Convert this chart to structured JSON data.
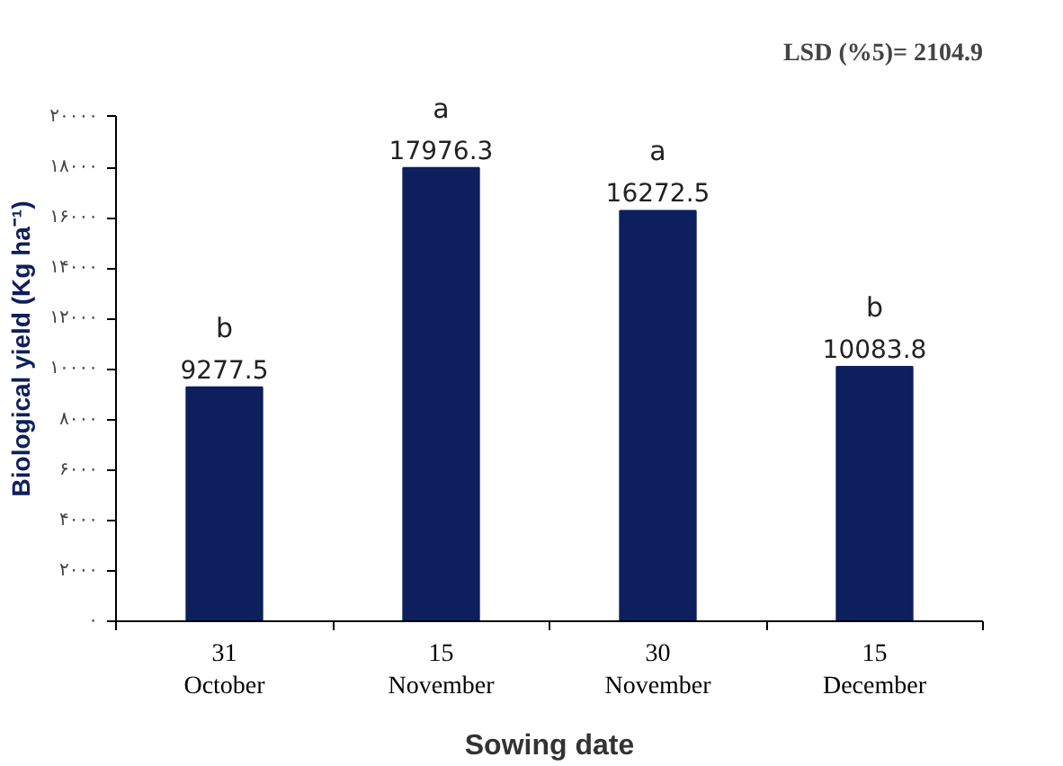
{
  "chart_data": {
    "type": "bar",
    "xlabel": "Sowing date",
    "ylabel": "Biological yield (Kg ha⁻¹)",
    "categories": [
      "31\nOctober",
      "15\nNovember",
      "30\nNovember",
      "15\nDecember"
    ],
    "values": [
      9277.5,
      17976.3,
      16272.5,
      10083.8
    ],
    "color": "#0d1f5c",
    "data_labels": true,
    "ylim": [
      0,
      20000
    ],
    "yticks": [
      {
        "value": 0,
        "label": "۰"
      },
      {
        "value": 2000,
        "label": "۲۰۰۰"
      },
      {
        "value": 4000,
        "label": "۴۰۰۰"
      },
      {
        "value": 6000,
        "label": "۶۰۰۰"
      },
      {
        "value": 8000,
        "label": "۸۰۰۰"
      },
      {
        "value": 10000,
        "label": "۱۰۰۰۰"
      },
      {
        "value": 12000,
        "label": "۱۲۰۰۰"
      },
      {
        "value": 14000,
        "label": "۱۴۰۰۰"
      },
      {
        "value": 16000,
        "label": "۱۶۰۰۰"
      },
      {
        "value": 18000,
        "label": "۱۸۰۰۰"
      },
      {
        "value": 20000,
        "label": "۲۰۰۰۰"
      }
    ],
    "grid": false,
    "annotations": [
      {
        "text": "b",
        "x": "31\nOctober",
        "y": 9277.5
      },
      {
        "text": "a",
        "x": "15\nNovember",
        "y": 17976.3
      },
      {
        "text": "a",
        "x": "30\nNovember",
        "y": 16272.5
      },
      {
        "text": "b",
        "x": "15\nDecember",
        "y": 10083.8
      },
      "LSD (%5)= 2104.9"
    ]
  }
}
